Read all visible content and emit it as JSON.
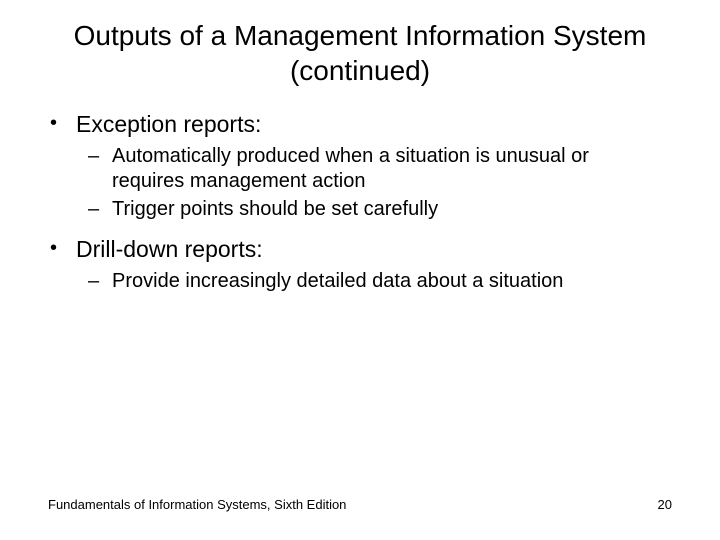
{
  "title": "Outputs of a Management Information System (continued)",
  "bullets": {
    "b1": {
      "label": "Exception reports:",
      "sub1": "Automatically produced when a situation is unusual or requires management action",
      "sub2": "Trigger points should be set carefully"
    },
    "b2": {
      "label": "Drill-down reports:",
      "sub1": "Provide increasingly detailed data about a situation"
    }
  },
  "footer": {
    "source": "Fundamentals of Information Systems, Sixth Edition",
    "page": "20"
  },
  "styling": {
    "title_fontsize": 28,
    "l1_fontsize": 23,
    "l2_fontsize": 20,
    "footer_fontsize": 13,
    "background_color": "#ffffff",
    "text_color": "#000000",
    "font_family": "Arial"
  }
}
